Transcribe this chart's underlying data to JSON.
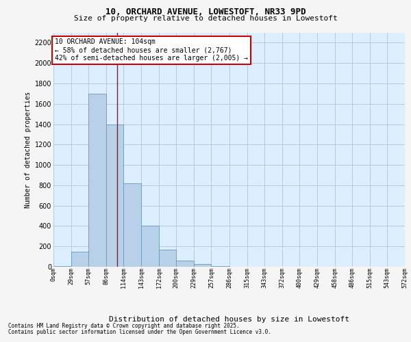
{
  "title_line1": "10, ORCHARD AVENUE, LOWESTOFT, NR33 9PD",
  "title_line2": "Size of property relative to detached houses in Lowestoft",
  "xlabel": "Distribution of detached houses by size in Lowestoft",
  "ylabel": "Number of detached properties",
  "footer_line1": "Contains HM Land Registry data © Crown copyright and database right 2025.",
  "footer_line2": "Contains public sector information licensed under the Open Government Licence v3.0.",
  "bar_edges": [
    0,
    29,
    57,
    86,
    114,
    143,
    172,
    200,
    229,
    257,
    286,
    315,
    343,
    372,
    400,
    429,
    458,
    486,
    515,
    543,
    572
  ],
  "bar_heights": [
    10,
    150,
    1700,
    1400,
    820,
    400,
    170,
    60,
    25,
    10,
    0,
    0,
    0,
    0,
    0,
    0,
    0,
    0,
    0,
    0
  ],
  "bar_color": "#b8d0e8",
  "bar_edgecolor": "#6699bb",
  "bg_color": "#ddeeff",
  "grid_color": "#b0c4d8",
  "red_line_x": 104,
  "annotation_line1": "10 ORCHARD AVENUE: 104sqm",
  "annotation_line2": "← 58% of detached houses are smaller (2,767)",
  "annotation_line3": "42% of semi-detached houses are larger (2,005) →",
  "ylim": [
    0,
    2300
  ],
  "yticks": [
    0,
    200,
    400,
    600,
    800,
    1000,
    1200,
    1400,
    1600,
    1800,
    2000,
    2200
  ],
  "tick_labels": [
    "0sqm",
    "29sqm",
    "57sqm",
    "86sqm",
    "114sqm",
    "143sqm",
    "172sqm",
    "200sqm",
    "229sqm",
    "257sqm",
    "286sqm",
    "315sqm",
    "343sqm",
    "372sqm",
    "400sqm",
    "429sqm",
    "458sqm",
    "486sqm",
    "515sqm",
    "543sqm",
    "572sqm"
  ],
  "fig_bg": "#f5f5f5",
  "title1_fontsize": 9,
  "title2_fontsize": 8,
  "ylabel_fontsize": 7,
  "xlabel_fontsize": 8,
  "ytick_fontsize": 7,
  "xtick_fontsize": 6,
  "footer_fontsize": 5.5,
  "annot_fontsize": 7
}
